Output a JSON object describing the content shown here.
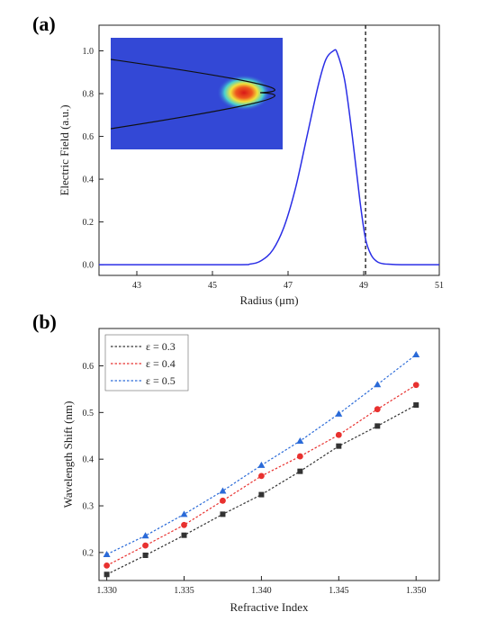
{
  "chart_data": [
    {
      "panel_label": "(a)",
      "type": "line",
      "xlabel": "Radius (μm)",
      "ylabel": "Electric Field (a.u.)",
      "xlim": [
        42,
        51
      ],
      "ylim": [
        -0.05,
        1.12
      ],
      "x_ticks": [
        43,
        45,
        47,
        49,
        51
      ],
      "x_tick_labels": [
        "43",
        "45",
        "47",
        "49",
        "51"
      ],
      "y_ticks": [
        0.0,
        0.2,
        0.4,
        0.6,
        0.8,
        1.0
      ],
      "y_tick_labels": [
        "0.0",
        "0.2",
        "0.4",
        "0.6",
        "0.8",
        "1.0"
      ],
      "grid": false,
      "series": [
        {
          "color": "#2a2ee6",
          "x": [
            42.0,
            45.5,
            46.0,
            46.3,
            46.6,
            46.9,
            47.2,
            47.5,
            47.8,
            48.0,
            48.2,
            48.3,
            48.5,
            48.7,
            48.9,
            49.05,
            49.2,
            49.35,
            49.5,
            49.7,
            50.0,
            51.0
          ],
          "y": [
            0.0,
            0.0,
            0.003,
            0.02,
            0.07,
            0.18,
            0.36,
            0.6,
            0.84,
            0.96,
            1.0,
            0.99,
            0.86,
            0.6,
            0.3,
            0.12,
            0.045,
            0.015,
            0.005,
            0.002,
            0.0,
            0.0
          ]
        }
      ],
      "vline": {
        "x": 49.05,
        "style": "dashed",
        "color": "#111111"
      },
      "inset": {
        "description_type": "heatmap",
        "colors": [
          "#2f3fd6",
          "#2fb8d9",
          "#f2e23a",
          "#e02020"
        ]
      }
    },
    {
      "panel_label": "(b)",
      "type": "line",
      "xlabel": "Refractive Index",
      "ylabel": "Wavelength Shift (nm)",
      "xlim": [
        1.3295,
        1.3515
      ],
      "ylim": [
        0.14,
        0.68
      ],
      "x_ticks": [
        1.33,
        1.335,
        1.34,
        1.345,
        1.35
      ],
      "x_tick_labels": [
        "1.330",
        "1.335",
        "1.340",
        "1.345",
        "1.350"
      ],
      "y_ticks": [
        0.2,
        0.3,
        0.4,
        0.5,
        0.6
      ],
      "y_tick_labels": [
        "0.2",
        "0.3",
        "0.4",
        "0.5",
        "0.6"
      ],
      "grid": false,
      "legend_position": "top-left",
      "x": [
        1.33,
        1.3325,
        1.335,
        1.3375,
        1.34,
        1.3425,
        1.345,
        1.3475,
        1.35
      ],
      "series": [
        {
          "name": "ε = 0.3",
          "color": "#333333",
          "marker": "square",
          "values": [
            0.153,
            0.194,
            0.237,
            0.282,
            0.324,
            0.374,
            0.428,
            0.471,
            0.516
          ]
        },
        {
          "name": "ε = 0.4",
          "color": "#e8312f",
          "marker": "circle",
          "values": [
            0.172,
            0.215,
            0.259,
            0.311,
            0.364,
            0.406,
            0.452,
            0.507,
            0.559
          ]
        },
        {
          "name": "ε = 0.5",
          "color": "#2a6ad8",
          "marker": "triangle",
          "values": [
            0.196,
            0.236,
            0.282,
            0.332,
            0.387,
            0.439,
            0.497,
            0.56,
            0.624
          ]
        }
      ]
    }
  ]
}
